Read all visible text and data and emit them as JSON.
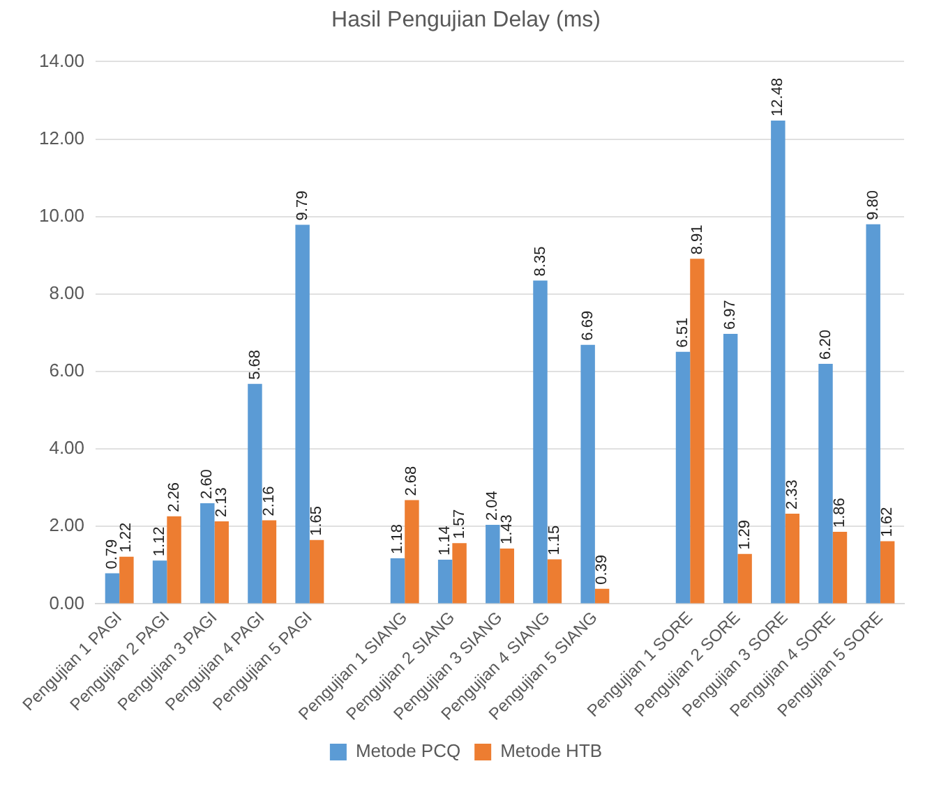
{
  "chart_data": {
    "type": "bar",
    "title": "Hasil Pengujian Delay (ms)",
    "categories": [
      "Pengujian 1 PAGI",
      "Pengujian 2 PAGI",
      "Pengujian 3 PAGI",
      "Pengujian 4 PAGI",
      "Pengujian 5 PAGI",
      null,
      "Pengujian 1 SIANG",
      "Pengujian 2 SIANG",
      "Pengujian 3 SIANG",
      "Pengujian 4 SIANG",
      "Pengujian 5 SIANG",
      null,
      "Pengujian 1 SORE",
      "Pengujian 2 SORE",
      "Pengujian 3 SORE",
      "Pengujian 4 SORE",
      "Pengujian 5 SORE"
    ],
    "series": [
      {
        "name": "Metode PCQ",
        "color": "#5b9bd5",
        "values": [
          0.79,
          1.12,
          2.6,
          5.68,
          9.79,
          null,
          1.18,
          1.14,
          2.04,
          8.35,
          6.69,
          null,
          6.51,
          6.97,
          12.48,
          6.2,
          9.8
        ],
        "value_labels": [
          "0.79",
          "1.12",
          "2.60",
          "5.68",
          "9.79",
          null,
          "1.18",
          "1.14",
          "2.04",
          "8.35",
          "6.69",
          null,
          "6.51",
          "6.97",
          "12.48",
          "6.20",
          "9.80"
        ]
      },
      {
        "name": "Metode HTB",
        "color": "#ed7d31",
        "values": [
          1.22,
          2.26,
          2.13,
          2.16,
          1.65,
          null,
          2.68,
          1.57,
          1.43,
          1.15,
          0.39,
          null,
          8.91,
          1.29,
          2.33,
          1.86,
          1.62
        ],
        "value_labels": [
          "1.22",
          "2.26",
          "2.13",
          "2.16",
          "1.65",
          null,
          "2.68",
          "1.57",
          "1.43",
          "1.15",
          "0.39",
          null,
          "8.91",
          "1.29",
          "2.33",
          "1.86",
          "1.62"
        ]
      }
    ],
    "ylim": [
      0,
      14
    ],
    "yticks": [
      {
        "value": 0,
        "label": "0.00"
      },
      {
        "value": 2,
        "label": "2.00"
      },
      {
        "value": 4,
        "label": "4.00"
      },
      {
        "value": 6,
        "label": "6.00"
      },
      {
        "value": 8,
        "label": "8.00"
      },
      {
        "value": 10,
        "label": "10.00"
      },
      {
        "value": 12,
        "label": "12.00"
      },
      {
        "value": 14,
        "label": "14.00"
      }
    ],
    "grid": "y",
    "legend": "bottom"
  }
}
